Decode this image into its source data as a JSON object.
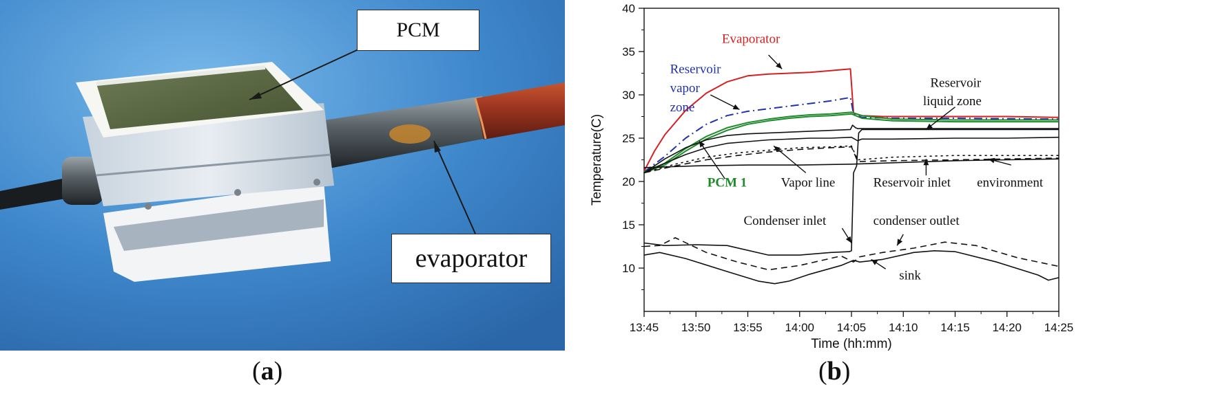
{
  "photo_panel": {
    "callouts": {
      "pcm": "PCM",
      "evaporator": "evaporator"
    },
    "panel_label": "a",
    "colors": {
      "background": "#3f88cc",
      "copper_tube": "#9b3420",
      "pcm_surface": "#5a6a48"
    }
  },
  "chart_panel": {
    "panel_label": "b"
  },
  "chart_data": {
    "type": "line",
    "xlabel": "Time (hh:mm)",
    "ylabel": "Temperature(C)",
    "x_unit": "minutes after 13:45",
    "xlim": [
      0,
      40
    ],
    "ylim": [
      5,
      40
    ],
    "x_ticks": [
      0,
      5,
      10,
      15,
      20,
      25,
      30,
      35,
      40
    ],
    "x_tick_labels": [
      "13:45",
      "13:50",
      "13:55",
      "14:00",
      "14:05",
      "14:10",
      "14:15",
      "14:20",
      "14:25"
    ],
    "y_ticks": [
      10,
      15,
      20,
      25,
      30,
      35,
      40
    ],
    "y_tick_labels": [
      "10",
      "15",
      "20",
      "25",
      "30",
      "35",
      "40"
    ],
    "series": [
      {
        "name": "Evaporator",
        "color": "#d42020",
        "style": "solid",
        "x": [
          0,
          1,
          2,
          4,
          6,
          8,
          10,
          12,
          14,
          16,
          18,
          19.9,
          20.2,
          21,
          23,
          26,
          30,
          35,
          40
        ],
        "y": [
          21.2,
          23.5,
          25.4,
          28.2,
          30.2,
          31.5,
          32.2,
          32.4,
          32.5,
          32.6,
          32.8,
          33.0,
          27.9,
          27.6,
          27.5,
          27.5,
          27.5,
          27.5,
          27.4
        ]
      },
      {
        "name": "Reservoir vapor zone",
        "color": "#2233aa",
        "style": "dashdot",
        "x": [
          0,
          2,
          4,
          6,
          8,
          10,
          12,
          14,
          16,
          18,
          19.9,
          20.2,
          21,
          24,
          30,
          40
        ],
        "y": [
          21.1,
          22.9,
          25.0,
          26.6,
          27.6,
          28.1,
          28.4,
          28.7,
          29.0,
          29.3,
          29.7,
          27.8,
          27.4,
          27.3,
          27.3,
          27.2
        ]
      },
      {
        "name": "PCM 1",
        "color": "#1e8a2c",
        "style": "solid",
        "x": [
          0,
          2,
          4,
          6,
          8,
          10,
          12,
          14,
          16,
          18,
          20,
          21,
          24,
          30,
          40
        ],
        "y": [
          21.1,
          22.1,
          23.8,
          25.2,
          26.2,
          26.8,
          27.2,
          27.5,
          27.7,
          27.8,
          28.0,
          27.6,
          27.2,
          27.1,
          27.1
        ]
      },
      {
        "name": "PCM 1 (second trace)",
        "color": "#1e8a2c",
        "style": "solid",
        "x": [
          0,
          2,
          4,
          6,
          8,
          10,
          12,
          14,
          16,
          18,
          20,
          21,
          24,
          30,
          40
        ],
        "y": [
          21.0,
          21.9,
          23.5,
          24.9,
          25.9,
          26.6,
          27.0,
          27.3,
          27.5,
          27.6,
          27.8,
          27.3,
          27.0,
          26.9,
          26.9
        ]
      },
      {
        "name": "Reservoir liquid zone",
        "color": "#111111",
        "style": "solid",
        "x": [
          0,
          2,
          4,
          6,
          8,
          10,
          12,
          14,
          16,
          18,
          19.9,
          20.1,
          20.4,
          20.6,
          24,
          30,
          35,
          40
        ],
        "y": [
          21.0,
          22.6,
          23.9,
          24.8,
          25.3,
          25.5,
          25.6,
          25.7,
          25.8,
          25.9,
          26.0,
          26.5,
          26.2,
          26.1,
          26.1,
          26.1,
          26.1,
          26.1
        ]
      },
      {
        "name": "Black mid trace",
        "color": "#111111",
        "style": "solid",
        "x": [
          0,
          2,
          4,
          6,
          8,
          10,
          12,
          14,
          16,
          18,
          20,
          20.6,
          21,
          24,
          30,
          35,
          40
        ],
        "y": [
          21.0,
          22.1,
          23.1,
          23.9,
          24.4,
          24.6,
          24.8,
          24.9,
          25.0,
          25.0,
          25.1,
          24.7,
          24.9,
          24.9,
          25.0,
          25.0,
          25.1
        ]
      },
      {
        "name": "Vapor line",
        "color": "#111111",
        "style": "dotted",
        "x": [
          0,
          3,
          6,
          9,
          12,
          15,
          18,
          20,
          20.6,
          24,
          30,
          35,
          40
        ],
        "y": [
          21.0,
          22.0,
          22.8,
          23.3,
          23.6,
          23.9,
          24.0,
          24.1,
          22.5,
          22.8,
          23.0,
          23.0,
          23.0
        ]
      },
      {
        "name": "Black dashed trace",
        "color": "#111111",
        "style": "dashed",
        "x": [
          0,
          3,
          6,
          9,
          12,
          15,
          18,
          20,
          20.6,
          24,
          30,
          35,
          40
        ],
        "y": [
          21.0,
          21.8,
          22.5,
          23.0,
          23.4,
          23.7,
          23.9,
          24.0,
          22.3,
          22.4,
          22.5,
          22.6,
          22.7
        ]
      },
      {
        "name": "environment",
        "color": "#111111",
        "style": "solid",
        "x": [
          0,
          5,
          10,
          15,
          20,
          25,
          30,
          35,
          40
        ],
        "y": [
          21.6,
          21.8,
          21.9,
          21.9,
          22.0,
          22.2,
          22.4,
          22.5,
          22.6
        ]
      },
      {
        "name": "Condenser inlet",
        "color": "#111111",
        "style": "solid",
        "x": [
          0,
          2,
          5,
          8,
          12,
          15,
          18,
          19.8,
          20.0,
          20.2,
          20.5,
          20.7,
          21,
          25,
          30,
          35,
          40
        ],
        "y": [
          12.9,
          12.6,
          12.7,
          12.6,
          11.5,
          11.5,
          11.8,
          11.9,
          12.0,
          21.0,
          21.8,
          25.6,
          26.0,
          26.0,
          26.0,
          26.0,
          26.0
        ]
      },
      {
        "name": "condenser outlet",
        "color": "#111111",
        "style": "dashed",
        "x": [
          0,
          1.5,
          3,
          6,
          9,
          12,
          15,
          19,
          20.2,
          20.8,
          23,
          26,
          29,
          32,
          36,
          40
        ],
        "y": [
          12.5,
          12.6,
          13.5,
          11.8,
          10.7,
          9.8,
          10.3,
          11.4,
          10.7,
          11.3,
          11.8,
          12.3,
          13.0,
          12.6,
          11.2,
          10.2
        ]
      },
      {
        "name": "sink",
        "color": "#111111",
        "style": "solid",
        "x": [
          0,
          1.5,
          4,
          8,
          11,
          12.6,
          14,
          16,
          19,
          20.2,
          20.8,
          23,
          26,
          28,
          30,
          34,
          38,
          39,
          40
        ],
        "y": [
          11.5,
          11.8,
          11.1,
          9.6,
          8.5,
          8.2,
          8.5,
          9.3,
          10.3,
          10.9,
          10.7,
          11.0,
          11.8,
          12.0,
          11.9,
          10.7,
          9.2,
          8.6,
          8.9
        ]
      }
    ],
    "annotations": [
      {
        "id": "evaporator",
        "text": "Evaporator",
        "color": "#d42020",
        "tx": 7.5,
        "ty": 36.0,
        "anchor": "start"
      },
      {
        "id": "res-vapor-1",
        "text": "Reservoir",
        "color": "#2233aa",
        "tx": 2.5,
        "ty": 32.5,
        "anchor": "start"
      },
      {
        "id": "res-vapor-2",
        "text": "vapor",
        "color": "#2233aa",
        "tx": 2.5,
        "ty": 30.3,
        "anchor": "start"
      },
      {
        "id": "res-vapor-3",
        "text": "zone",
        "color": "#2233aa",
        "tx": 2.5,
        "ty": 28.1,
        "anchor": "start"
      },
      {
        "id": "res-liquid-1",
        "text": "Reservoir",
        "color": "#111111",
        "tx": 27.6,
        "ty": 30.9,
        "anchor": "start"
      },
      {
        "id": "res-liquid-2",
        "text": "liquid zone",
        "color": "#111111",
        "tx": 26.9,
        "ty": 28.8,
        "anchor": "start"
      },
      {
        "id": "pcm1",
        "text": "PCM 1",
        "color": "#1e8a2c",
        "tx": 6.1,
        "ty": 19.4,
        "anchor": "start",
        "bold": true,
        "sans": true
      },
      {
        "id": "vapor-line",
        "text": "Vapor line",
        "color": "#111111",
        "tx": 13.2,
        "ty": 19.4,
        "anchor": "start"
      },
      {
        "id": "reservoir-inlet",
        "text": "Reservoir inlet",
        "color": "#111111",
        "tx": 22.1,
        "ty": 19.4,
        "anchor": "start"
      },
      {
        "id": "environment",
        "text": "environment",
        "color": "#111111",
        "tx": 32.1,
        "ty": 19.4,
        "anchor": "start"
      },
      {
        "id": "condenser-inlet",
        "text": "Condenser inlet",
        "color": "#111111",
        "tx": 9.6,
        "ty": 15.0,
        "anchor": "start"
      },
      {
        "id": "condenser-outlet",
        "text": "condenser outlet",
        "color": "#111111",
        "tx": 22.1,
        "ty": 15.0,
        "anchor": "start"
      },
      {
        "id": "sink",
        "text": "sink",
        "color": "#111111",
        "tx": 24.6,
        "ty": 8.7,
        "anchor": "start"
      }
    ],
    "arrows": [
      {
        "id": "arrow-evaporator",
        "from": [
          12.0,
          34.6
        ],
        "to": [
          13.3,
          33.0
        ]
      },
      {
        "id": "arrow-res-vapor",
        "from": [
          6.4,
          30.0
        ],
        "to": [
          9.2,
          28.3
        ]
      },
      {
        "id": "arrow-res-liquid",
        "from": [
          30.0,
          28.6
        ],
        "to": [
          27.2,
          26.0
        ]
      },
      {
        "id": "arrow-pcm1",
        "from": [
          7.8,
          20.3
        ],
        "to": [
          5.3,
          24.7
        ]
      },
      {
        "id": "arrow-vapor-line",
        "from": [
          15.6,
          21.0
        ],
        "to": [
          12.5,
          24.1
        ]
      },
      {
        "id": "arrow-reservoir-inlet",
        "from": [
          27.2,
          20.7
        ],
        "to": [
          27.2,
          22.6
        ]
      },
      {
        "id": "arrow-environment",
        "from": [
          35.4,
          21.9
        ],
        "to": [
          33.2,
          22.6
        ]
      },
      {
        "id": "arrow-condenser-inlet",
        "from": [
          19.1,
          14.6
        ],
        "to": [
          20.0,
          12.9
        ]
      },
      {
        "id": "arrow-condenser-outlet",
        "from": [
          25.0,
          13.9
        ],
        "to": [
          24.4,
          12.6
        ]
      },
      {
        "id": "arrow-sink",
        "from": [
          23.3,
          9.9
        ],
        "to": [
          21.9,
          11.0
        ]
      }
    ]
  }
}
